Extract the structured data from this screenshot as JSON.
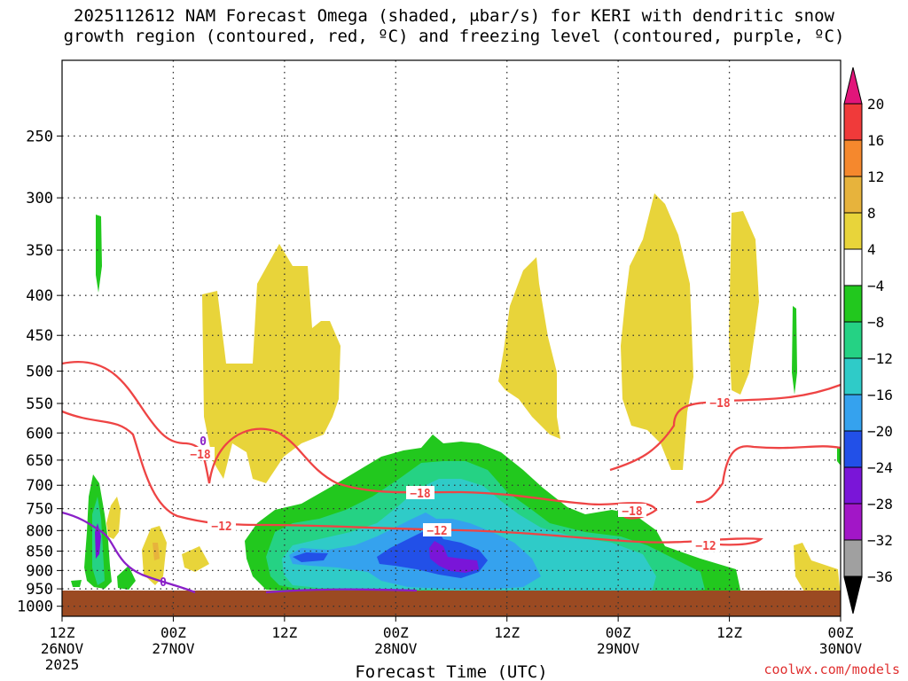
{
  "title_line_1": "2025112612 NAM Forecast Omega (shaded, μbar/s) for KERI with dendritic snow",
  "title_line_2": "growth region (contoured, red, ºC) and freezing level (contoured, purple, ºC)",
  "credit": "coolwx.com/models",
  "chart_data": {
    "type": "heatmap",
    "xlabel": "Forecast Time (UTC)",
    "ylabel": "",
    "x_ticks": [
      {
        "l1": "12Z",
        "l2": "26NOV",
        "l3": "2025"
      },
      {
        "l1": "00Z",
        "l2": "27NOV",
        "l3": ""
      },
      {
        "l1": "12Z",
        "l2": "",
        "l3": ""
      },
      {
        "l1": "00Z",
        "l2": "28NOV",
        "l3": ""
      },
      {
        "l1": "12Z",
        "l2": "",
        "l3": ""
      },
      {
        "l1": "00Z",
        "l2": "29NOV",
        "l3": ""
      },
      {
        "l1": "12Z",
        "l2": "",
        "l3": ""
      },
      {
        "l1": "00Z",
        "l2": "30NOV",
        "l3": ""
      }
    ],
    "x_range_hours": [
      0,
      84
    ],
    "y_ticks": [
      "250",
      "300",
      "350",
      "400",
      "450",
      "500",
      "550",
      "600",
      "650",
      "700",
      "750",
      "800",
      "850",
      "900",
      "950",
      "1000"
    ],
    "y_range_hPa": [
      200,
      1030
    ],
    "y_scale": "log-pressure",
    "grid": true,
    "colorbar_labels": [
      "20",
      "16",
      "12",
      "8",
      "4",
      "−4",
      "−8",
      "−12",
      "−16",
      "−20",
      "−24",
      "−28",
      "−32",
      "−36"
    ],
    "colorbar_colors": [
      "#f03a3a",
      "#f5882d",
      "#e7b33c",
      "#e8d43a",
      "#ffffff",
      "#22c81e",
      "#25d284",
      "#2fcbc8",
      "#35a2ee",
      "#2250e8",
      "#7a15d8",
      "#a216c7",
      "#a0a0a0"
    ],
    "colorbar_top_color": "#e2157a",
    "colorbar_bottom_color": "#000000",
    "terrain_color": "#9b4a22",
    "contour_labels_red": [
      "−18",
      "−18",
      "−18",
      "−18",
      "−12",
      "−12",
      "−12"
    ],
    "contour_labels_purple": [
      "0",
      "0"
    ],
    "red_contour_color": "#ee4444",
    "purple_contour_color": "#8a20c8"
  }
}
